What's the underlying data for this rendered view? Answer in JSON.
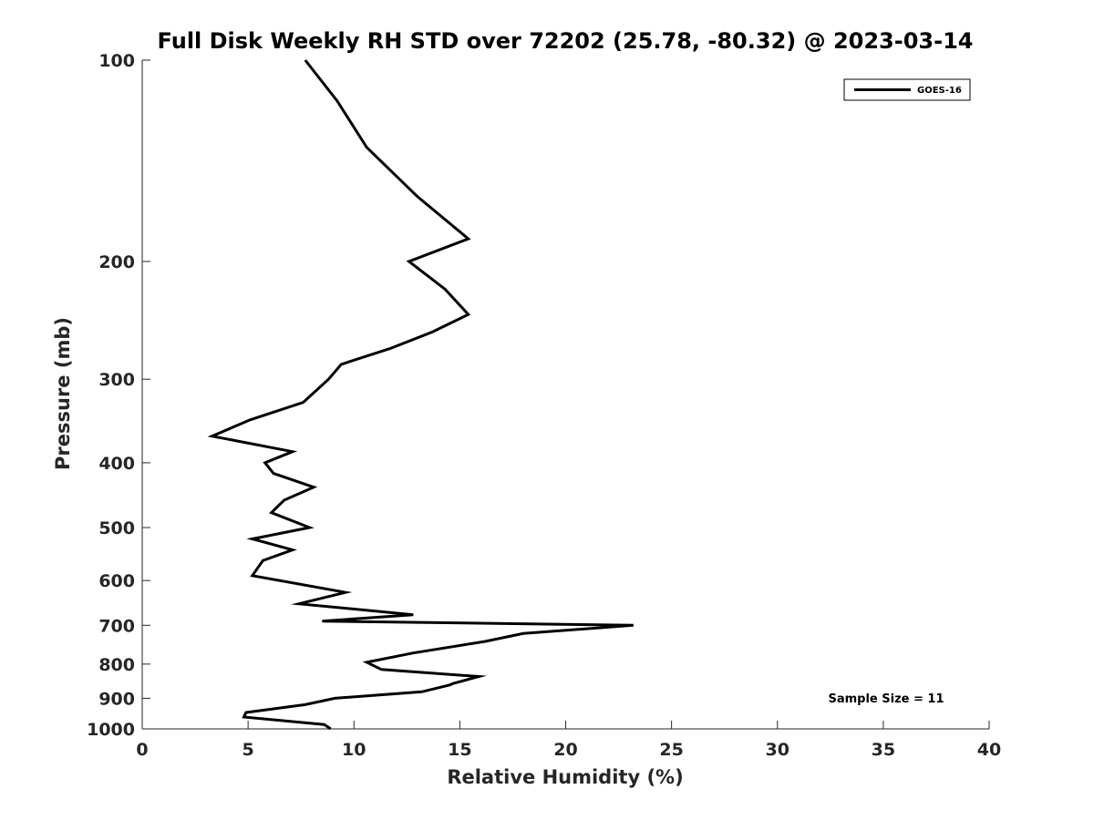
{
  "chart_data": {
    "type": "line",
    "title": "Full Disk Weekly RH STD over 72202 (25.78, -80.32) @ 2023-03-14",
    "xlabel": "Relative Humidity (%)",
    "ylabel": "Pressure (mb)",
    "xlim": [
      0,
      40
    ],
    "ylim": [
      100,
      1000
    ],
    "y_scale": "log",
    "y_reversed": true,
    "grid": false,
    "legend_position": "top-right",
    "x_ticks": [
      "0",
      "5",
      "10",
      "15",
      "20",
      "25",
      "30",
      "35",
      "40"
    ],
    "y_ticks": [
      "100",
      "200",
      "300",
      "400",
      "500",
      "600",
      "700",
      "800",
      "900",
      "1000"
    ],
    "annotation": "Sample Size = 11",
    "series": [
      {
        "name": "GOES-16",
        "color": "#000000",
        "x": [
          7.7,
          9.2,
          10.6,
          13.0,
          15.4,
          12.6,
          14.3,
          15.4,
          13.7,
          11.7,
          9.4,
          8.8,
          7.6,
          5.1,
          3.3,
          7.1,
          5.8,
          6.2,
          8.1,
          6.7,
          6.1,
          7.9,
          5.2,
          7.1,
          5.7,
          5.2,
          9.6,
          7.4,
          12.8,
          8.5,
          23.2,
          18.0,
          16.2,
          12.8,
          10.6,
          11.3,
          15.9,
          14.7,
          14.5,
          13.2,
          9.1,
          7.7,
          4.9,
          4.8,
          8.6,
          8.9
        ],
        "y": [
          100,
          115,
          135,
          160,
          185,
          200,
          220,
          240,
          255,
          270,
          285,
          300,
          325,
          345,
          365,
          385,
          400,
          415,
          435,
          455,
          475,
          500,
          520,
          540,
          560,
          590,
          625,
          650,
          675,
          690,
          700,
          720,
          740,
          770,
          795,
          815,
          835,
          855,
          860,
          880,
          900,
          920,
          945,
          960,
          985,
          1000
        ]
      }
    ]
  }
}
